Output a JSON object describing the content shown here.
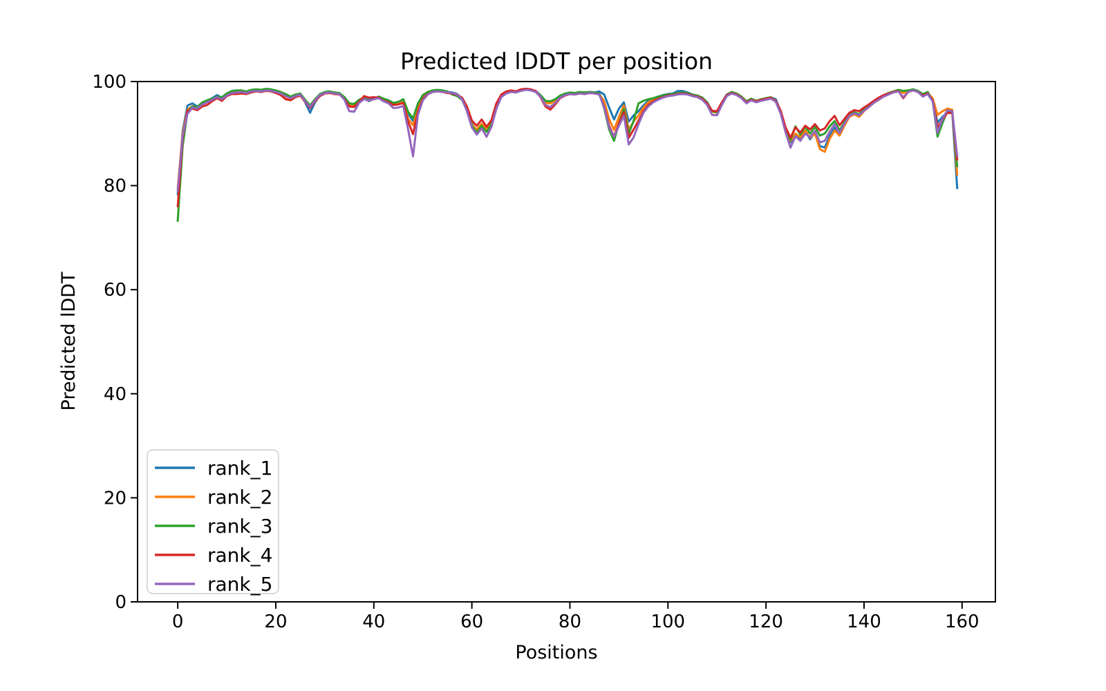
{
  "figure": {
    "title": "Predicted lDDT per position",
    "xlabel": "Positions",
    "ylabel": "Predicted lDDT"
  },
  "chart_data": {
    "type": "line",
    "title": "Predicted lDDT per position",
    "xlabel": "Positions",
    "ylabel": "Predicted lDDT",
    "xlim": [
      -8.2,
      166.8
    ],
    "ylim": [
      0,
      100
    ],
    "x_ticks": [
      0,
      20,
      40,
      60,
      80,
      100,
      120,
      140,
      160
    ],
    "y_ticks": [
      0,
      20,
      40,
      60,
      80,
      100
    ],
    "grid": false,
    "legend_position": "lower left",
    "x_start": 0,
    "x_step": 1,
    "n_points": 160,
    "series": [
      {
        "name": "rank_1",
        "color": "#1f77b4",
        "values": [
          78.3,
          90.5,
          95.4,
          95.8,
          95.2,
          95.9,
          96.3,
          96.8,
          97.4,
          96.9,
          97.6,
          98.0,
          98.1,
          98.2,
          98.0,
          98.3,
          98.4,
          98.3,
          98.4,
          98.3,
          98.1,
          97.8,
          97.3,
          96.9,
          97.3,
          97.6,
          96.0,
          94.0,
          96.0,
          97.4,
          97.9,
          98.0,
          97.8,
          97.7,
          96.9,
          95.7,
          95.5,
          96.4,
          96.9,
          96.5,
          96.8,
          97.0,
          96.5,
          96.2,
          95.7,
          95.9,
          96.3,
          93.8,
          92.4,
          95.5,
          97.2,
          97.9,
          98.2,
          98.3,
          98.2,
          98.0,
          97.9,
          97.6,
          96.8,
          94.8,
          91.9,
          90.5,
          91.7,
          90.6,
          92.0,
          95.3,
          97.3,
          97.9,
          98.2,
          98.0,
          98.4,
          98.6,
          98.5,
          98.2,
          97.4,
          96.2,
          96.2,
          96.5,
          97.2,
          97.6,
          97.8,
          97.7,
          97.9,
          97.8,
          98.0,
          97.9,
          98.1,
          97.5,
          95.0,
          92.7,
          94.8,
          96.0,
          92.3,
          93.5,
          94.3,
          95.4,
          96.3,
          96.7,
          97.1,
          97.4,
          97.6,
          97.7,
          98.2,
          98.2,
          97.9,
          97.5,
          97.3,
          96.9,
          96.0,
          94.3,
          94.1,
          95.9,
          97.5,
          97.9,
          97.6,
          97.0,
          96.0,
          96.6,
          96.2,
          96.5,
          96.7,
          96.9,
          96.6,
          94.2,
          90.8,
          88.3,
          89.8,
          89.0,
          90.5,
          88.9,
          90.2,
          87.6,
          87.3,
          89.6,
          91.1,
          89.9,
          91.8,
          93.4,
          93.9,
          93.4,
          94.5,
          95.2,
          96.0,
          96.6,
          97.2,
          97.6,
          98.0,
          98.3,
          98.0,
          98.2,
          98.5,
          98.2,
          97.5,
          97.9,
          96.6,
          92.1,
          93.2,
          94.0,
          94.1,
          79.5
        ]
      },
      {
        "name": "rank_2",
        "color": "#ff7f0e",
        "values": [
          79.5,
          90.0,
          94.6,
          95.3,
          95.0,
          95.8,
          96.2,
          96.6,
          97.0,
          96.7,
          97.4,
          97.9,
          98.0,
          98.1,
          97.9,
          98.2,
          98.3,
          98.2,
          98.4,
          98.3,
          98.0,
          97.5,
          96.7,
          96.5,
          97.1,
          97.4,
          96.3,
          95.0,
          96.3,
          97.3,
          97.8,
          97.9,
          97.7,
          97.6,
          96.7,
          95.4,
          95.3,
          96.2,
          96.7,
          96.3,
          96.6,
          96.9,
          96.4,
          96.1,
          95.6,
          95.8,
          96.1,
          92.8,
          91.6,
          94.8,
          96.9,
          97.7,
          98.1,
          98.2,
          98.1,
          97.9,
          97.8,
          97.5,
          96.7,
          94.6,
          91.7,
          90.8,
          91.9,
          90.8,
          92.2,
          95.5,
          97.4,
          98.0,
          98.2,
          98.1,
          98.4,
          98.5,
          98.4,
          98.1,
          97.3,
          95.9,
          95.8,
          96.3,
          97.1,
          97.5,
          97.7,
          97.6,
          97.8,
          97.7,
          97.9,
          97.8,
          97.6,
          96.2,
          92.8,
          90.7,
          93.2,
          95.4,
          90.8,
          92.3,
          93.5,
          95.0,
          96.0,
          96.5,
          96.9,
          97.2,
          97.4,
          97.5,
          97.7,
          97.8,
          97.7,
          97.4,
          97.2,
          96.8,
          95.9,
          94.2,
          94.0,
          95.8,
          97.4,
          97.8,
          97.5,
          96.9,
          95.9,
          96.5,
          96.1,
          96.4,
          96.6,
          96.8,
          96.2,
          94.0,
          90.7,
          88.6,
          90.0,
          89.3,
          90.6,
          89.2,
          90.0,
          87.0,
          86.5,
          89.0,
          90.6,
          89.6,
          91.5,
          93.2,
          93.7,
          93.2,
          94.3,
          95.1,
          95.9,
          96.5,
          97.1,
          97.5,
          97.9,
          98.2,
          97.8,
          98.1,
          98.4,
          98.1,
          97.4,
          97.8,
          96.8,
          93.6,
          94.3,
          94.8,
          94.6,
          82.1
        ]
      },
      {
        "name": "rank_3",
        "color": "#2ca02c",
        "values": [
          73.2,
          87.5,
          94.3,
          95.2,
          95.1,
          96.0,
          96.4,
          96.7,
          97.1,
          97.0,
          97.7,
          98.2,
          98.3,
          98.3,
          98.1,
          98.4,
          98.5,
          98.4,
          98.6,
          98.5,
          98.3,
          98.0,
          97.6,
          97.1,
          97.5,
          97.7,
          96.5,
          95.4,
          96.6,
          97.6,
          98.0,
          98.1,
          97.9,
          97.8,
          97.0,
          95.8,
          95.7,
          96.5,
          96.9,
          96.2,
          96.7,
          97.1,
          96.7,
          96.4,
          95.9,
          96.1,
          96.6,
          94.2,
          92.9,
          95.8,
          97.4,
          98.0,
          98.3,
          98.4,
          98.3,
          98.1,
          97.5,
          97.2,
          96.5,
          94.4,
          91.5,
          90.2,
          91.5,
          90.3,
          91.8,
          95.1,
          97.2,
          97.8,
          98.1,
          97.9,
          98.3,
          98.5,
          98.4,
          98.1,
          97.4,
          96.3,
          96.2,
          96.6,
          97.3,
          97.7,
          97.9,
          97.8,
          98.0,
          97.9,
          98.0,
          97.9,
          97.7,
          94.8,
          90.8,
          88.6,
          92.0,
          94.7,
          90.0,
          92.5,
          95.8,
          96.3,
          96.6,
          96.8,
          97.1,
          97.3,
          97.5,
          97.6,
          97.8,
          97.9,
          97.8,
          97.5,
          97.3,
          96.9,
          96.0,
          94.3,
          94.1,
          95.9,
          97.5,
          98.0,
          97.7,
          97.1,
          96.2,
          96.7,
          96.3,
          96.6,
          96.8,
          97.0,
          96.3,
          94.3,
          91.0,
          88.8,
          91.4,
          89.8,
          91.3,
          90.0,
          91.3,
          89.6,
          90.0,
          91.4,
          92.4,
          90.6,
          92.2,
          93.6,
          94.1,
          93.7,
          94.7,
          95.4,
          96.2,
          96.8,
          97.4,
          97.8,
          98.1,
          98.4,
          98.2,
          98.3,
          98.5,
          98.2,
          97.6,
          98.0,
          96.3,
          89.4,
          92.0,
          94.4,
          94.2,
          83.7
        ]
      },
      {
        "name": "rank_4",
        "color": "#d62728",
        "values": [
          76.0,
          89.0,
          94.4,
          94.8,
          94.5,
          95.2,
          95.5,
          96.2,
          96.8,
          96.3,
          97.2,
          97.6,
          97.6,
          97.7,
          97.6,
          97.9,
          98.1,
          98.0,
          98.2,
          98.1,
          97.8,
          97.4,
          96.6,
          96.4,
          97.0,
          97.3,
          96.1,
          94.9,
          96.2,
          97.2,
          97.7,
          97.8,
          97.6,
          97.5,
          96.6,
          95.2,
          95.1,
          96.1,
          97.2,
          96.9,
          97.0,
          96.9,
          96.3,
          96.0,
          95.5,
          95.6,
          95.9,
          92.3,
          89.9,
          94.2,
          96.7,
          97.6,
          98.0,
          98.1,
          98.0,
          97.8,
          97.7,
          97.4,
          96.9,
          95.2,
          92.5,
          91.5,
          92.7,
          91.3,
          92.6,
          95.8,
          97.5,
          98.1,
          98.3,
          98.1,
          98.5,
          98.6,
          98.5,
          98.2,
          97.0,
          95.2,
          94.6,
          95.6,
          96.8,
          97.3,
          97.6,
          97.5,
          97.7,
          97.6,
          97.8,
          97.7,
          97.5,
          95.2,
          91.5,
          89.4,
          92.0,
          94.1,
          89.2,
          90.8,
          92.5,
          94.3,
          95.5,
          96.2,
          96.7,
          97.0,
          97.3,
          97.4,
          97.6,
          97.7,
          97.6,
          97.3,
          97.1,
          96.7,
          95.8,
          94.4,
          94.3,
          96.0,
          97.4,
          97.8,
          97.5,
          96.9,
          96.0,
          96.5,
          96.2,
          96.5,
          96.7,
          96.9,
          96.3,
          94.4,
          91.2,
          89.2,
          91.2,
          90.2,
          91.5,
          90.8,
          91.8,
          90.6,
          91.0,
          92.4,
          93.4,
          91.6,
          92.8,
          94.0,
          94.5,
          94.3,
          95.0,
          95.6,
          96.3,
          96.9,
          97.4,
          97.7,
          98.0,
          98.2,
          96.8,
          98.0,
          98.3,
          98.0,
          97.3,
          97.7,
          96.4,
          91.2,
          92.6,
          94.0,
          93.9,
          85.0
        ]
      },
      {
        "name": "rank_5",
        "color": "#9467bd",
        "values": [
          79.0,
          89.5,
          93.8,
          95.0,
          94.8,
          95.6,
          96.0,
          96.5,
          97.0,
          96.6,
          97.3,
          97.8,
          97.9,
          98.0,
          97.8,
          98.1,
          98.2,
          98.1,
          98.3,
          98.2,
          98.0,
          97.7,
          97.2,
          96.8,
          97.2,
          97.5,
          96.2,
          95.1,
          96.4,
          97.4,
          97.8,
          97.9,
          97.7,
          97.6,
          96.5,
          94.3,
          94.2,
          95.9,
          96.6,
          96.3,
          96.6,
          96.8,
          96.2,
          95.8,
          94.9,
          95.0,
          95.3,
          90.8,
          85.6,
          93.6,
          96.4,
          97.5,
          98.0,
          98.1,
          98.0,
          97.9,
          97.8,
          97.5,
          96.6,
          94.3,
          91.2,
          89.8,
          91.0,
          89.4,
          91.3,
          94.8,
          97.0,
          97.7,
          98.0,
          97.9,
          98.2,
          98.4,
          98.3,
          98.0,
          97.1,
          95.5,
          95.1,
          95.9,
          96.9,
          97.4,
          97.6,
          97.5,
          97.7,
          97.6,
          97.8,
          97.7,
          97.5,
          95.0,
          91.2,
          89.4,
          91.5,
          93.4,
          87.9,
          89.3,
          91.8,
          94.0,
          95.2,
          96.0,
          96.5,
          96.9,
          97.2,
          97.3,
          97.5,
          97.6,
          97.5,
          97.2,
          97.0,
          96.5,
          95.5,
          93.6,
          93.5,
          95.5,
          97.2,
          97.7,
          97.4,
          96.8,
          95.8,
          96.4,
          96.0,
          96.3,
          96.5,
          96.7,
          96.1,
          93.8,
          90.2,
          87.3,
          89.5,
          88.6,
          90.0,
          89.3,
          90.5,
          88.3,
          88.6,
          90.4,
          91.8,
          90.1,
          91.9,
          93.4,
          93.9,
          93.5,
          94.4,
          95.1,
          95.9,
          96.5,
          97.1,
          97.5,
          97.9,
          98.1,
          97.0,
          98.0,
          98.3,
          98.0,
          97.1,
          97.6,
          96.2,
          90.1,
          92.8,
          94.5,
          94.3,
          85.7
        ]
      }
    ],
    "style": {
      "line_width": 3,
      "spine_color": "#000000",
      "legend_border_color": "#cccccc",
      "background": "#ffffff"
    }
  }
}
